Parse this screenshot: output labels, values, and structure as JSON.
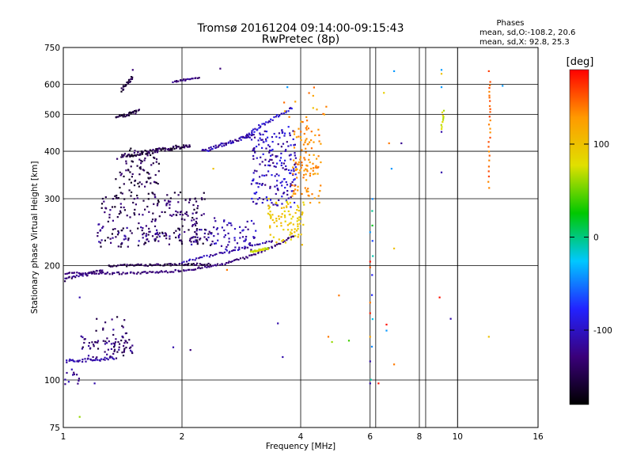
{
  "chart_data": {
    "type": "scatter",
    "title": "Tromsø 20161204 09:14:00-09:15:43",
    "subtitle": "RwPretec (8p)",
    "xlabel": "Frequency [MHz]",
    "ylabel": "Stationary phase Virtual Height [km]",
    "xscale": "log",
    "yscale": "log",
    "xlim": [
      1,
      16
    ],
    "ylim": [
      75,
      750
    ],
    "xticks": [
      1,
      2,
      4,
      6,
      8,
      10,
      16
    ],
    "yticks": [
      75,
      100,
      200,
      300,
      400,
      500,
      600,
      750
    ],
    "grid": true,
    "extra_vlines": [
      6.2,
      8.3,
      10.0
    ],
    "phases_box": {
      "title": "Phases",
      "line_o": "mean, sd,O:-108.2, 20.6",
      "line_x": "mean, sd,X:  92.8, 25.3"
    },
    "colorbar": {
      "label": "[deg]",
      "range": [
        -180,
        180
      ],
      "ticks": [
        100,
        0,
        -100
      ],
      "colors": [
        "#000000",
        "#3a007a",
        "#2222ff",
        "#00c8ff",
        "#00c800",
        "#e0e000",
        "#ff9a00",
        "#ff0000"
      ]
    },
    "traces": [
      {
        "x": [
          1.0,
          3.85
        ],
        "h0": 191,
        "h1": 240,
        "shape": "curve",
        "n": 140,
        "phase": [
          -140,
          -120
        ],
        "spread": 0.012
      },
      {
        "x": [
          1.0,
          1.26
        ],
        "h0": 183,
        "h1": 195,
        "shape": "line",
        "n": 30,
        "phase": [
          -150,
          -110
        ],
        "spread": 0.02
      },
      {
        "x": [
          1.3,
          2.35
        ],
        "h0": 200,
        "h1": 202,
        "shape": "line",
        "n": 70,
        "phase": [
          -165,
          -130
        ],
        "spread": 0.012
      },
      {
        "x": [
          2.0,
          3.4
        ],
        "h0": 204,
        "h1": 232,
        "shape": "line",
        "n": 45,
        "phase": [
          -130,
          -95
        ],
        "spread": 0.012
      },
      {
        "x": [
          1.22,
          2.4
        ],
        "h0": 228,
        "h1": 252,
        "shape": "cloud",
        "n": 150,
        "phase": [
          -165,
          -105
        ],
        "spread": 0.06
      },
      {
        "x": [
          1.25,
          2.3
        ],
        "h0": 260,
        "h1": 305,
        "shape": "cloud",
        "n": 120,
        "phase": [
          -165,
          -120
        ],
        "spread": 0.07
      },
      {
        "x": [
          1.4,
          2.1
        ],
        "h0": 388,
        "h1": 415,
        "shape": "line",
        "n": 90,
        "phase": [
          -170,
          -130
        ],
        "spread": 0.025
      },
      {
        "x": [
          1.35,
          1.75
        ],
        "h0": 300,
        "h1": 410,
        "shape": "cloud",
        "n": 90,
        "phase": [
          -170,
          -130
        ],
        "spread": 0.06
      },
      {
        "x": [
          1.36,
          1.55
        ],
        "h0": 490,
        "h1": 510,
        "shape": "line",
        "n": 30,
        "phase": [
          -170,
          -140
        ],
        "spread": 0.02
      },
      {
        "x": [
          1.4,
          1.5
        ],
        "h0": 580,
        "h1": 625,
        "shape": "line",
        "n": 20,
        "phase": [
          -170,
          -140
        ],
        "spread": 0.02
      },
      {
        "x": [
          1.9,
          2.2
        ],
        "h0": 610,
        "h1": 625,
        "shape": "line",
        "n": 20,
        "phase": [
          -140,
          -110
        ],
        "spread": 0.01
      },
      {
        "x": [
          2.25,
          3.0
        ],
        "h0": 400,
        "h1": 440,
        "shape": "line",
        "n": 55,
        "phase": [
          -130,
          -95
        ],
        "spread": 0.02
      },
      {
        "x": [
          2.9,
          3.8
        ],
        "h0": 440,
        "h1": 520,
        "shape": "line",
        "n": 35,
        "phase": [
          -120,
          -80
        ],
        "spread": 0.02
      },
      {
        "x": [
          3.0,
          3.9
        ],
        "h0": 290,
        "h1": 460,
        "shape": "cloud",
        "n": 200,
        "phase": [
          -130,
          -80
        ],
        "spread": 0.06
      },
      {
        "x": [
          2.4,
          3.1
        ],
        "h0": 220,
        "h1": 265,
        "shape": "cloud",
        "n": 60,
        "phase": [
          -125,
          -90
        ],
        "spread": 0.04
      },
      {
        "x": [
          3.0,
          3.3
        ],
        "h0": 218,
        "h1": 222,
        "shape": "line",
        "n": 25,
        "phase": [
          60,
          90
        ],
        "spread": 0.01
      },
      {
        "x": [
          3.3,
          4.1
        ],
        "h0": 230,
        "h1": 295,
        "shape": "cloud",
        "n": 90,
        "phase": [
          80,
          110
        ],
        "spread": 0.04
      },
      {
        "x": [
          3.8,
          4.5
        ],
        "h0": 300,
        "h1": 460,
        "shape": "cloud",
        "n": 110,
        "phase": [
          120,
          145
        ],
        "spread": 0.05
      },
      {
        "x": [
          3.6,
          4.8
        ],
        "h0": 470,
        "h1": 600,
        "shape": "cloud",
        "n": 15,
        "phase": [
          110,
          150
        ],
        "spread": 0.05
      },
      {
        "x": [
          1.0,
          1.35
        ],
        "h0": 112,
        "h1": 114,
        "shape": "line",
        "n": 40,
        "phase": [
          -120,
          -100
        ],
        "spread": 0.02
      },
      {
        "x": [
          1.1,
          1.5
        ],
        "h0": 116,
        "h1": 128,
        "shape": "cloud",
        "n": 70,
        "phase": [
          -160,
          -110
        ],
        "spread": 0.05
      },
      {
        "x": [
          1.2,
          1.45
        ],
        "h0": 130,
        "h1": 150,
        "shape": "cloud",
        "n": 15,
        "phase": [
          -160,
          -110
        ],
        "spread": 0.05
      },
      {
        "x": [
          1.0,
          1.1
        ],
        "h0": 98,
        "h1": 106,
        "shape": "cloud",
        "n": 12,
        "phase": [
          -130,
          -100
        ],
        "spread": 0.03
      },
      {
        "x": [
          12.0,
          12.1
        ],
        "h0": 320,
        "h1": 610,
        "shape": "line",
        "n": 26,
        "phase": [
          130,
          160
        ],
        "spread": 0.01
      },
      {
        "x": [
          9.1,
          9.2
        ],
        "h0": 460,
        "h1": 510,
        "shape": "line",
        "n": 10,
        "phase": [
          60,
          90
        ],
        "spread": 0.01
      },
      {
        "x": [
          6.05,
          6.1
        ],
        "h0": 100,
        "h1": 300,
        "shape": "line",
        "n": 10,
        "phase": [
          -90,
          30
        ],
        "spread": 0.01
      }
    ],
    "sparse_points": [
      {
        "x": 6.5,
        "y": 570,
        "phase": 90
      },
      {
        "x": 6.9,
        "y": 650,
        "phase": -40
      },
      {
        "x": 6.8,
        "y": 360,
        "phase": -40
      },
      {
        "x": 6.7,
        "y": 420,
        "phase": 140
      },
      {
        "x": 7.2,
        "y": 420,
        "phase": -120
      },
      {
        "x": 9.1,
        "y": 655,
        "phase": -40
      },
      {
        "x": 9.1,
        "y": 640,
        "phase": 100
      },
      {
        "x": 9.1,
        "y": 590,
        "phase": -40
      },
      {
        "x": 9.1,
        "y": 450,
        "phase": -110
      },
      {
        "x": 9.1,
        "y": 352,
        "phase": -110
      },
      {
        "x": 12.0,
        "y": 650,
        "phase": 160
      },
      {
        "x": 13.0,
        "y": 595,
        "phase": -40
      },
      {
        "x": 6.0,
        "y": 205,
        "phase": 175
      },
      {
        "x": 6.0,
        "y": 198,
        "phase": 150
      },
      {
        "x": 6.0,
        "y": 245,
        "phase": -40
      },
      {
        "x": 6.0,
        "y": 160,
        "phase": 140
      },
      {
        "x": 6.0,
        "y": 150,
        "phase": 170
      },
      {
        "x": 6.0,
        "y": 130,
        "phase": 120
      },
      {
        "x": 6.0,
        "y": 112,
        "phase": -110
      },
      {
        "x": 6.0,
        "y": 98,
        "phase": -110
      },
      {
        "x": 6.3,
        "y": 98,
        "phase": 175
      },
      {
        "x": 6.6,
        "y": 140,
        "phase": 175
      },
      {
        "x": 6.6,
        "y": 135,
        "phase": -40
      },
      {
        "x": 6.9,
        "y": 110,
        "phase": 140
      },
      {
        "x": 6.9,
        "y": 222,
        "phase": 100
      },
      {
        "x": 9.0,
        "y": 165,
        "phase": 175
      },
      {
        "x": 9.6,
        "y": 145,
        "phase": -110
      },
      {
        "x": 12.0,
        "y": 130,
        "phase": 100
      },
      {
        "x": 5.0,
        "y": 167,
        "phase": 140
      },
      {
        "x": 4.7,
        "y": 130,
        "phase": 140
      },
      {
        "x": 4.8,
        "y": 126,
        "phase": 60
      },
      {
        "x": 5.3,
        "y": 127,
        "phase": 40
      },
      {
        "x": 3.5,
        "y": 141,
        "phase": -110
      },
      {
        "x": 3.6,
        "y": 115,
        "phase": -110
      },
      {
        "x": 3.7,
        "y": 590,
        "phase": -40
      },
      {
        "x": 4.3,
        "y": 520,
        "phase": 100
      },
      {
        "x": 2.1,
        "y": 120,
        "phase": -130
      },
      {
        "x": 1.9,
        "y": 122,
        "phase": -110
      },
      {
        "x": 1.1,
        "y": 80,
        "phase": 60
      },
      {
        "x": 1.2,
        "y": 98,
        "phase": -110
      },
      {
        "x": 1.1,
        "y": 165,
        "phase": -110
      },
      {
        "x": 1.5,
        "y": 655,
        "phase": -130
      },
      {
        "x": 2.5,
        "y": 660,
        "phase": -130
      },
      {
        "x": 2.4,
        "y": 360,
        "phase": 100
      },
      {
        "x": 2.6,
        "y": 195,
        "phase": 140
      }
    ]
  }
}
